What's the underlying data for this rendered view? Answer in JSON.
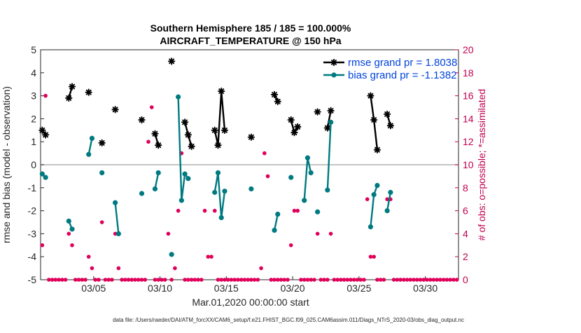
{
  "chart_data": {
    "type": "line",
    "title": "Southern Hemisphere 185 / 185 = 100.000%",
    "subtitle": "AIRCRAFT_TEMPERATURE @ 150 hPa",
    "xlabel": "Mar.01,2020 00:00:00 start",
    "ylabel": "rmse and bias (model - observation)",
    "y2label": "# of obs: o=possible; *=assimilated",
    "footer": "data file: /Users/raeder/DAI/ATM_forcXX/CAM6_setup/f.e21.FHIST_BGC.f09_025.CAM6assim.011/Diags_NTrS_2020-03/obs_diag_output.nc",
    "xlim": [
      0.0,
      31.5
    ],
    "ylim": [
      -5,
      5
    ],
    "y2lim": [
      0,
      20
    ],
    "xtick_values": [
      4,
      9,
      14,
      19,
      24,
      29
    ],
    "xtick_labels": [
      "03/05",
      "03/10",
      "03/15",
      "03/20",
      "03/25",
      "03/30"
    ],
    "ytick_labels": [
      "5",
      "4",
      "3",
      "2",
      "1",
      "0",
      "-1",
      "-2",
      "-3",
      "-4",
      "-5"
    ],
    "y2tick_labels": [
      "20",
      "18",
      "16",
      "14",
      "12",
      "10",
      "8",
      "6",
      "4",
      "2",
      "0"
    ],
    "colors": {
      "rmse": "#000000",
      "bias": "#007a80",
      "obs": "#e0005a",
      "zero_line": "#b0b0b0",
      "right_axis": "#c00050"
    },
    "series": [
      {
        "name": "rmse grand pr = 1.8038",
        "key": "rmse",
        "segments": [
          [
            [
              0.125,
              1.5
            ],
            [
              0.375,
              1.3
            ]
          ],
          [
            [
              2.125,
              2.9
            ],
            [
              2.375,
              3.4
            ]
          ],
          [
            [
              3.625,
              3.15
            ]
          ],
          [
            [
              4.625,
              0.95
            ]
          ],
          [
            [
              5.625,
              2.4
            ]
          ],
          [
            [
              7.625,
              1.95
            ]
          ],
          [
            [
              8.625,
              1.35
            ],
            [
              8.875,
              0.85
            ]
          ],
          [
            [
              9.875,
              4.5
            ]
          ],
          [
            [
              10.875,
              1.85
            ],
            [
              11.125,
              1.3
            ],
            [
              11.375,
              0.8
            ]
          ],
          [
            [
              13.125,
              1.5
            ],
            [
              13.375,
              0.85
            ],
            [
              13.625,
              3.2
            ],
            [
              13.875,
              1.5
            ]
          ],
          [
            [
              15.875,
              1.2
            ]
          ],
          [
            [
              17.625,
              3.05
            ],
            [
              17.875,
              2.75
            ]
          ],
          [
            [
              18.875,
              1.95
            ],
            [
              19.125,
              1.4
            ],
            [
              19.375,
              1.65
            ]
          ],
          [
            [
              20.875,
              2.3
            ]
          ],
          [
            [
              21.625,
              1.6
            ],
            [
              21.875,
              2.35
            ]
          ],
          [
            [
              24.875,
              3.0
            ],
            [
              25.125,
              1.95
            ],
            [
              25.375,
              0.65
            ]
          ],
          [
            [
              26.125,
              2.2
            ],
            [
              26.375,
              1.7
            ]
          ]
        ]
      },
      {
        "name": "bias grand pr = -1.1382",
        "key": "bias",
        "segments": [
          [
            [
              0.125,
              -0.4
            ],
            [
              0.375,
              -0.55
            ]
          ],
          [
            [
              2.125,
              -2.45
            ],
            [
              2.375,
              -2.8
            ]
          ],
          [
            [
              3.625,
              0.45
            ],
            [
              3.875,
              1.15
            ]
          ],
          [
            [
              4.625,
              -0.35
            ]
          ],
          [
            [
              5.625,
              -1.65
            ],
            [
              5.875,
              -3.0
            ]
          ],
          [
            [
              7.625,
              -1.25
            ]
          ],
          [
            [
              8.625,
              -1.05
            ],
            [
              8.875,
              -0.35
            ]
          ],
          [
            [
              9.875,
              -3.9
            ]
          ],
          [
            [
              10.375,
              2.95
            ],
            [
              10.625,
              -1.55
            ],
            [
              10.875,
              -0.4
            ],
            [
              11.125,
              -0.6
            ]
          ],
          [
            [
              13.125,
              -1.2
            ],
            [
              13.375,
              -0.35
            ],
            [
              13.625,
              -2.3
            ],
            [
              13.875,
              -1.15
            ]
          ],
          [
            [
              15.875,
              -1.05
            ]
          ],
          [
            [
              17.625,
              -2.85
            ],
            [
              17.875,
              -2.15
            ]
          ],
          [
            [
              18.875,
              -0.55
            ]
          ],
          [
            [
              19.875,
              -1.55
            ],
            [
              20.125,
              0.3
            ],
            [
              20.375,
              -0.35
            ]
          ],
          [
            [
              20.875,
              -2.05
            ]
          ],
          [
            [
              21.625,
              -1.1
            ],
            [
              21.875,
              1.85
            ]
          ],
          [
            [
              24.875,
              -2.7
            ],
            [
              25.125,
              -1.3
            ],
            [
              25.375,
              -0.9
            ]
          ],
          [
            [
              26.125,
              -2.0
            ],
            [
              26.375,
              -1.2
            ]
          ]
        ]
      }
    ],
    "obs_counts": {
      "name": "# of obs",
      "x": [
        0.125,
        0.375,
        0.625,
        0.875,
        1.125,
        1.375,
        1.625,
        1.875,
        2.125,
        2.375,
        2.625,
        2.875,
        3.125,
        3.375,
        3.625,
        3.875,
        4.125,
        4.375,
        4.625,
        4.875,
        5.125,
        5.375,
        5.625,
        5.875,
        6.125,
        6.375,
        6.625,
        6.875,
        7.125,
        7.375,
        7.625,
        7.875,
        8.125,
        8.375,
        8.625,
        8.875,
        9.125,
        9.375,
        9.625,
        9.875,
        10.125,
        10.375,
        10.625,
        10.875,
        11.125,
        11.375,
        11.625,
        11.875,
        12.125,
        12.375,
        12.625,
        12.875,
        13.125,
        13.375,
        13.625,
        13.875,
        14.125,
        14.375,
        14.625,
        14.875,
        15.125,
        15.375,
        15.625,
        15.875,
        16.125,
        16.375,
        16.625,
        16.875,
        17.125,
        17.375,
        17.625,
        17.875,
        18.125,
        18.375,
        18.625,
        18.875,
        19.125,
        19.375,
        19.625,
        19.875,
        20.125,
        20.375,
        20.625,
        20.875,
        21.125,
        21.375,
        21.625,
        21.875,
        22.125,
        22.375,
        22.625,
        22.875,
        23.125,
        23.375,
        23.625,
        23.875,
        24.125,
        24.375,
        24.625,
        24.875,
        25.125,
        25.375,
        25.625,
        25.875,
        26.125,
        26.375,
        26.625,
        26.875,
        27.125,
        27.375,
        27.625,
        27.875,
        28.125,
        28.375,
        28.625,
        28.875,
        29.125,
        29.375,
        29.625,
        29.875,
        30.125,
        30.375,
        30.625,
        30.875,
        31.125,
        31.375
      ],
      "values": [
        3,
        16,
        0,
        0,
        0,
        0,
        0,
        0,
        4,
        3,
        0,
        0,
        0,
        0,
        2,
        1,
        0,
        0,
        5,
        0,
        0,
        0,
        4,
        1,
        0,
        0,
        0,
        0,
        0,
        0,
        0,
        0,
        12,
        15,
        0,
        0,
        0,
        0,
        4,
        0,
        1,
        6,
        11,
        0,
        0,
        0,
        0,
        0,
        0,
        6,
        2,
        2,
        6,
        0,
        0,
        0,
        0,
        0,
        0,
        0,
        0,
        0,
        0,
        0,
        0,
        0,
        1,
        11,
        9,
        0,
        0,
        0,
        0,
        0,
        0,
        3,
        6,
        6,
        0,
        0,
        0,
        0,
        0,
        4,
        0,
        0,
        0,
        4,
        0,
        0,
        0,
        0,
        0,
        0,
        0,
        0,
        0,
        0,
        7,
        2,
        2,
        0,
        0,
        0,
        7,
        7,
        0,
        0,
        0,
        0,
        0,
        0,
        0,
        0,
        0,
        0,
        0,
        0,
        0,
        0,
        0,
        0,
        0,
        0,
        0,
        0
      ]
    }
  }
}
